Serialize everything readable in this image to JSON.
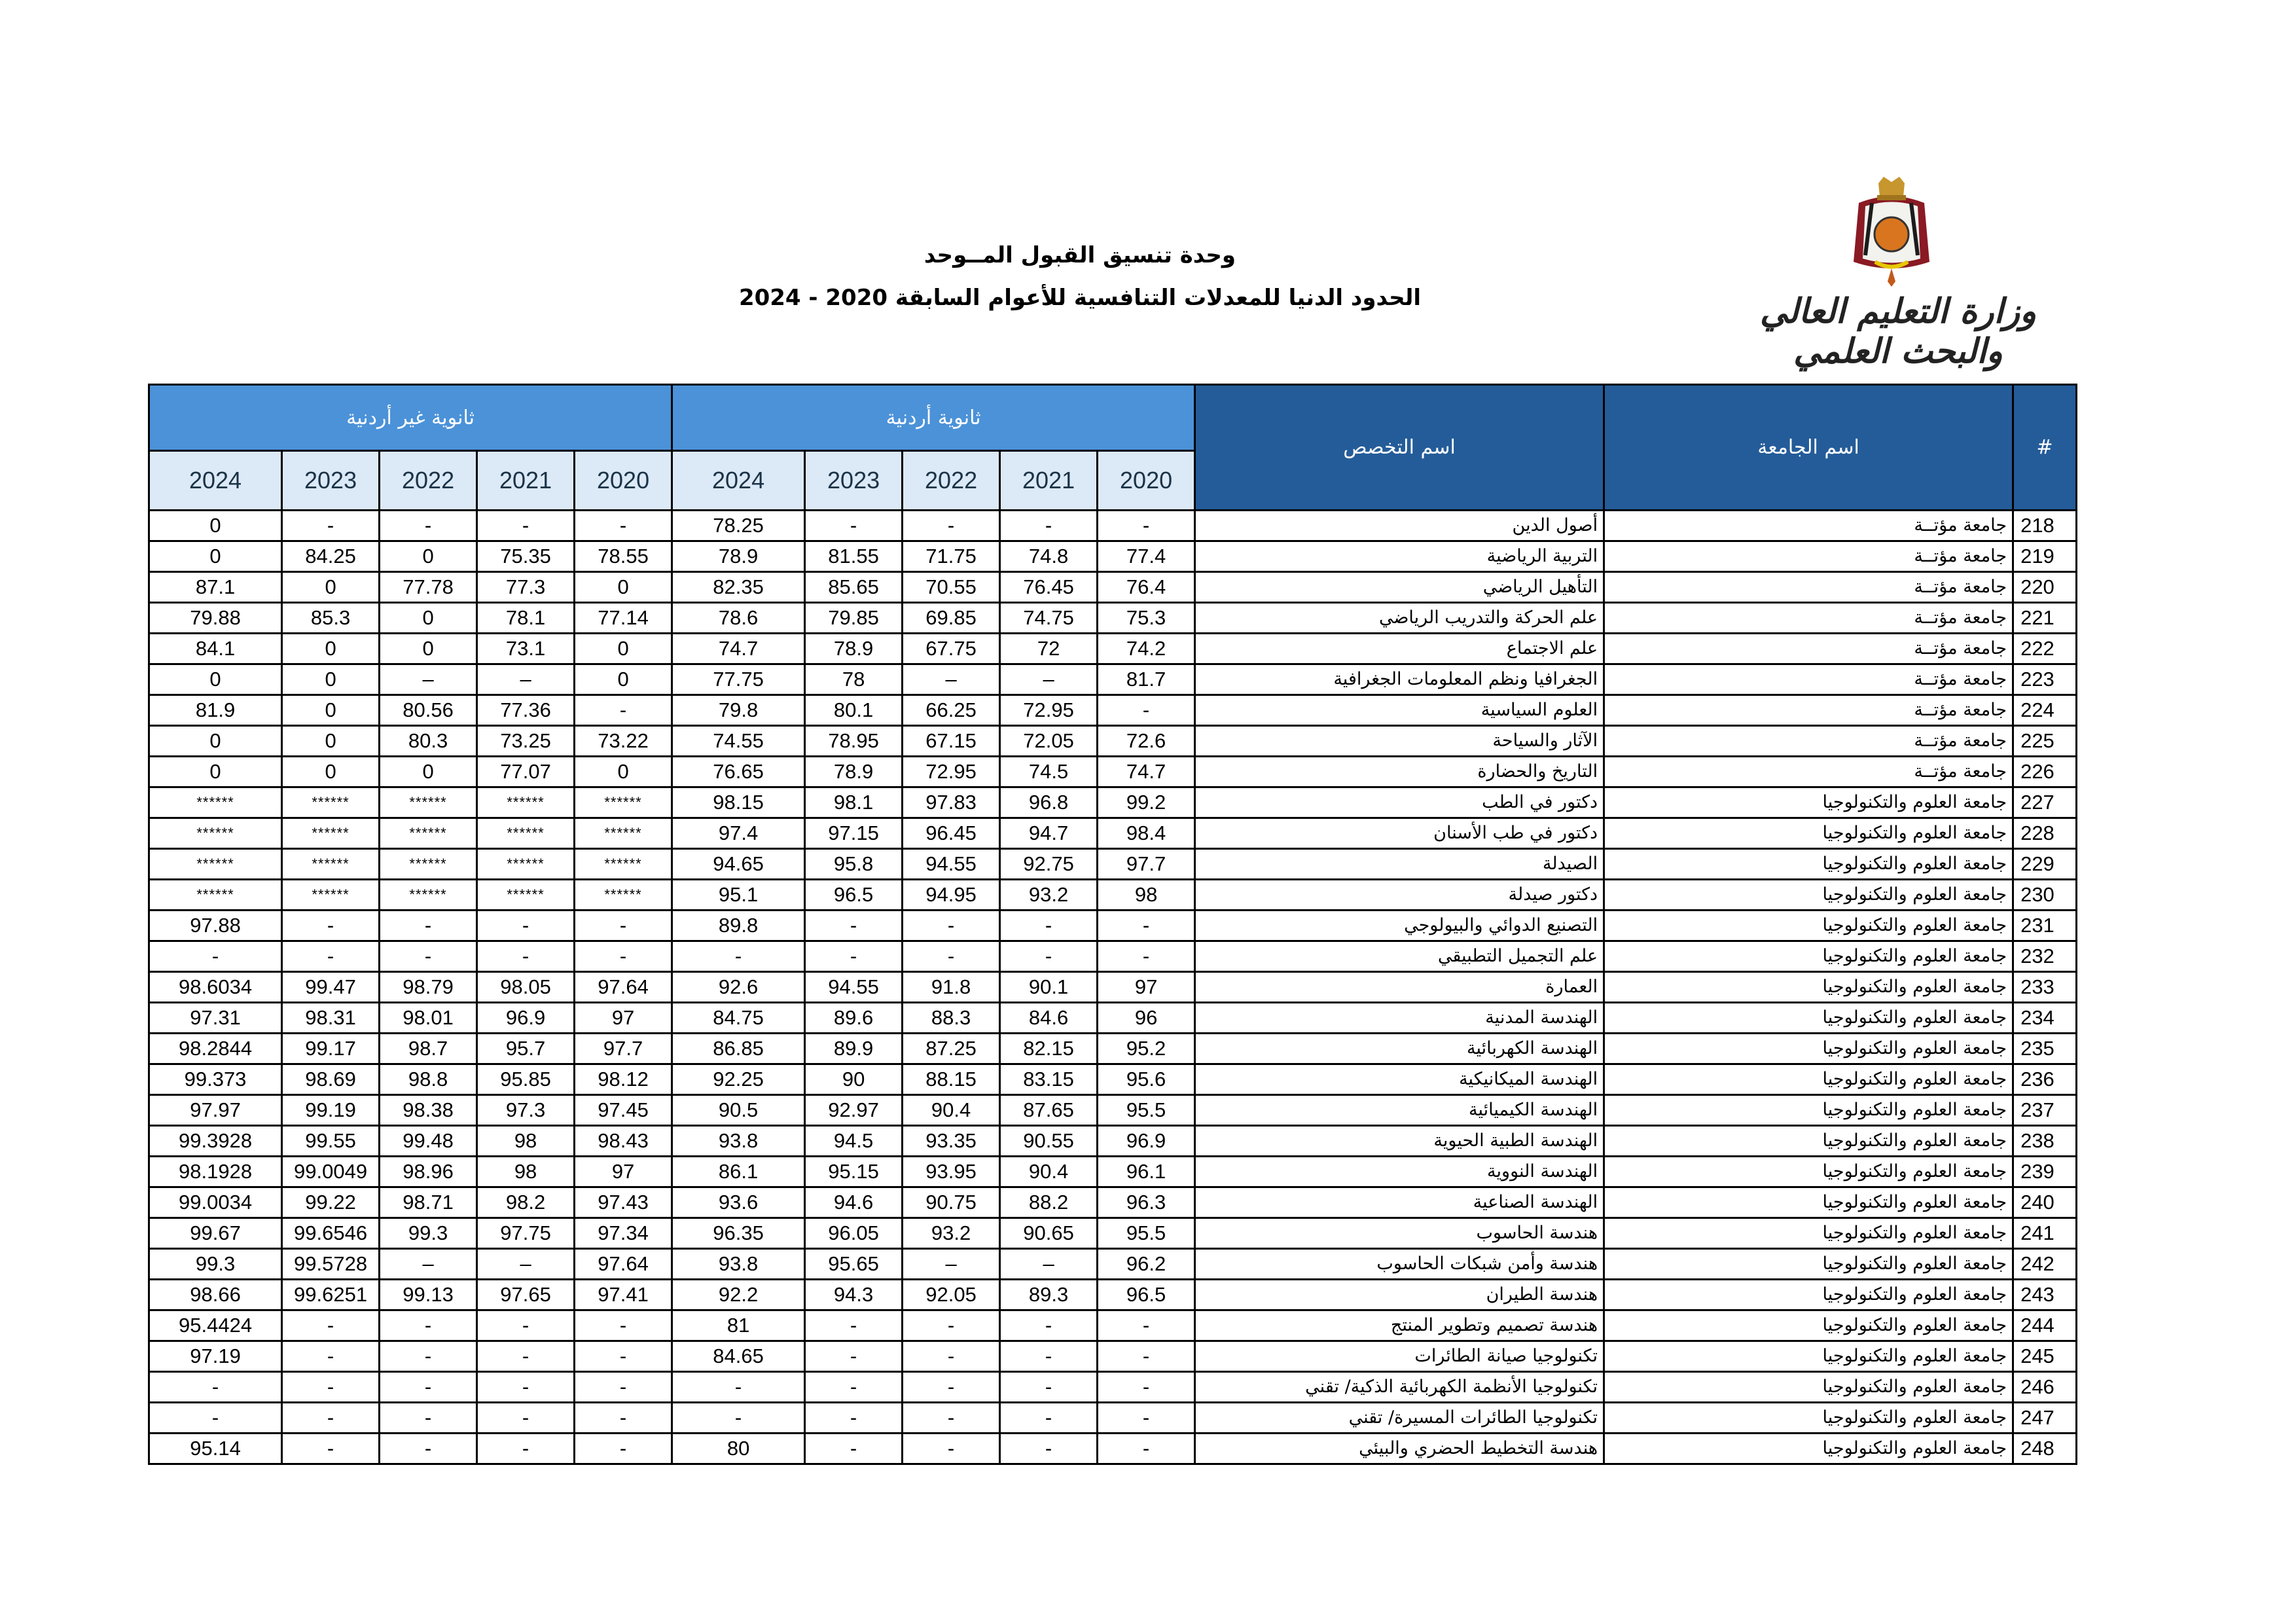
{
  "header": {
    "title": "وحدة تنسيق القبول المــوحد",
    "subtitle": "الحدود الدنيا للمعدلات التنافسية  للأعوام السابقة 2020 - 2024",
    "logo_text": "وزارة التعليم العالي والبحث العلمي"
  },
  "table": {
    "col_num": "#",
    "col_university": "اسم الجامعة",
    "col_major": "اسم التخصص",
    "group_jordanian": "ثانوية أردنية",
    "group_non_jordanian": "ثانوية غير أردنية",
    "years": [
      "2020",
      "2021",
      "2022",
      "2023",
      "2024"
    ],
    "rows": [
      {
        "n": "218",
        "u": "جامعة مؤتــة",
        "m": "أصول الدين",
        "jo": [
          "-",
          "-",
          "-",
          "-",
          "78.25"
        ],
        "nj": [
          "-",
          "-",
          "-",
          "-",
          "0"
        ]
      },
      {
        "n": "219",
        "u": "جامعة مؤتــة",
        "m": "التربية الرياضية",
        "jo": [
          "77.4",
          "74.8",
          "71.75",
          "81.55",
          "78.9"
        ],
        "nj": [
          "78.55",
          "75.35",
          "0",
          "84.25",
          "0"
        ]
      },
      {
        "n": "220",
        "u": "جامعة مؤتــة",
        "m": "التأهيل الرياضي",
        "jo": [
          "76.4",
          "76.45",
          "70.55",
          "85.65",
          "82.35"
        ],
        "nj": [
          "0",
          "77.3",
          "77.78",
          "0",
          "87.1"
        ]
      },
      {
        "n": "221",
        "u": "جامعة مؤتــة",
        "m": "علم الحركة والتدريب الرياضي",
        "jo": [
          "75.3",
          "74.75",
          "69.85",
          "79.85",
          "78.6"
        ],
        "nj": [
          "77.14",
          "78.1",
          "0",
          "85.3",
          "79.88"
        ]
      },
      {
        "n": "222",
        "u": "جامعة مؤتــة",
        "m": "علم الاجتماع",
        "jo": [
          "74.2",
          "72",
          "67.75",
          "78.9",
          "74.7"
        ],
        "nj": [
          "0",
          "73.1",
          "0",
          "0",
          "84.1"
        ]
      },
      {
        "n": "223",
        "u": "جامعة مؤتــة",
        "m": "الجغرافيا ونظم المعلومات الجغرافية",
        "jo": [
          "81.7",
          "–",
          "–",
          "78",
          "77.75"
        ],
        "nj": [
          "0",
          "–",
          "–",
          "0",
          "0"
        ]
      },
      {
        "n": "224",
        "u": "جامعة مؤتــة",
        "m": "العلوم السياسية",
        "jo": [
          "-",
          "72.95",
          "66.25",
          "80.1",
          "79.8"
        ],
        "nj": [
          "-",
          "77.36",
          "80.56",
          "0",
          "81.9"
        ]
      },
      {
        "n": "225",
        "u": "جامعة مؤتــة",
        "m": "الآثار والسياحة",
        "jo": [
          "72.6",
          "72.05",
          "67.15",
          "78.95",
          "74.55"
        ],
        "nj": [
          "73.22",
          "73.25",
          "80.3",
          "0",
          "0"
        ]
      },
      {
        "n": "226",
        "u": "جامعة مؤتــة",
        "m": "التاريخ والحضارة",
        "jo": [
          "74.7",
          "74.5",
          "72.95",
          "78.9",
          "76.65"
        ],
        "nj": [
          "0",
          "77.07",
          "0",
          "0",
          "0"
        ]
      },
      {
        "n": "227",
        "u": "جامعة العلوم والتكنولوجيا",
        "m": "دكتور في الطب",
        "jo": [
          "99.2",
          "96.8",
          "97.83",
          "98.1",
          "98.15"
        ],
        "nj": [
          "******",
          "******",
          "******",
          "******",
          "******"
        ]
      },
      {
        "n": "228",
        "u": "جامعة العلوم والتكنولوجيا",
        "m": "دكتور في طب الأسنان",
        "jo": [
          "98.4",
          "94.7",
          "96.45",
          "97.15",
          "97.4"
        ],
        "nj": [
          "******",
          "******",
          "******",
          "******",
          "******"
        ]
      },
      {
        "n": "229",
        "u": "جامعة العلوم والتكنولوجيا",
        "m": "الصيدلة",
        "jo": [
          "97.7",
          "92.75",
          "94.55",
          "95.8",
          "94.65"
        ],
        "nj": [
          "******",
          "******",
          "******",
          "******",
          "******"
        ]
      },
      {
        "n": "230",
        "u": "جامعة العلوم والتكنولوجيا",
        "m": "دكتور صيدلة",
        "jo": [
          "98",
          "93.2",
          "94.95",
          "96.5",
          "95.1"
        ],
        "nj": [
          "******",
          "******",
          "******",
          "******",
          "******"
        ]
      },
      {
        "n": "231",
        "u": "جامعة العلوم والتكنولوجيا",
        "m": "التصنيع الدوائي والبيولوجي",
        "jo": [
          "-",
          "-",
          "-",
          "-",
          "89.8"
        ],
        "nj": [
          "-",
          "-",
          "-",
          "-",
          "97.88"
        ]
      },
      {
        "n": "232",
        "u": "جامعة العلوم والتكنولوجيا",
        "m": "علم التجميل التطبيقي",
        "jo": [
          "-",
          "-",
          "-",
          "-",
          "-"
        ],
        "nj": [
          "-",
          "-",
          "-",
          "-",
          "-"
        ]
      },
      {
        "n": "233",
        "u": "جامعة العلوم والتكنولوجيا",
        "m": "العمارة",
        "jo": [
          "97",
          "90.1",
          "91.8",
          "94.55",
          "92.6"
        ],
        "nj": [
          "97.64",
          "98.05",
          "98.79",
          "99.47",
          "98.6034"
        ]
      },
      {
        "n": "234",
        "u": "جامعة العلوم والتكنولوجيا",
        "m": "الهندسة المدنية",
        "jo": [
          "96",
          "84.6",
          "88.3",
          "89.6",
          "84.75"
        ],
        "nj": [
          "97",
          "96.9",
          "98.01",
          "98.31",
          "97.31"
        ]
      },
      {
        "n": "235",
        "u": "جامعة العلوم والتكنولوجيا",
        "m": "الهندسة الكهربائية",
        "jo": [
          "95.2",
          "82.15",
          "87.25",
          "89.9",
          "86.85"
        ],
        "nj": [
          "97.7",
          "95.7",
          "98.7",
          "99.17",
          "98.2844"
        ]
      },
      {
        "n": "236",
        "u": "جامعة العلوم والتكنولوجيا",
        "m": "الهندسة الميكانيكية",
        "jo": [
          "95.6",
          "83.15",
          "88.15",
          "90",
          "92.25"
        ],
        "nj": [
          "98.12",
          "95.85",
          "98.8",
          "98.69",
          "99.373"
        ]
      },
      {
        "n": "237",
        "u": "جامعة العلوم والتكنولوجيا",
        "m": "الهندسة الكيميائية",
        "jo": [
          "95.5",
          "87.65",
          "90.4",
          "92.97",
          "90.5"
        ],
        "nj": [
          "97.45",
          "97.3",
          "98.38",
          "99.19",
          "97.97"
        ]
      },
      {
        "n": "238",
        "u": "جامعة العلوم والتكنولوجيا",
        "m": "الهندسة الطبية الحيوية",
        "jo": [
          "96.9",
          "90.55",
          "93.35",
          "94.5",
          "93.8"
        ],
        "nj": [
          "98.43",
          "98",
          "99.48",
          "99.55",
          "99.3928"
        ]
      },
      {
        "n": "239",
        "u": "جامعة العلوم والتكنولوجيا",
        "m": "الهندسة النووية",
        "jo": [
          "96.1",
          "90.4",
          "93.95",
          "95.15",
          "86.1"
        ],
        "nj": [
          "97",
          "98",
          "98.96",
          "99.0049",
          "98.1928"
        ]
      },
      {
        "n": "240",
        "u": "جامعة العلوم والتكنولوجيا",
        "m": "الهندسة الصناعية",
        "jo": [
          "96.3",
          "88.2",
          "90.75",
          "94.6",
          "93.6"
        ],
        "nj": [
          "97.43",
          "98.2",
          "98.71",
          "99.22",
          "99.0034"
        ]
      },
      {
        "n": "241",
        "u": "جامعة العلوم والتكنولوجيا",
        "m": "هندسة الحاسوب",
        "jo": [
          "95.5",
          "90.65",
          "93.2",
          "96.05",
          "96.35"
        ],
        "nj": [
          "97.34",
          "97.75",
          "99.3",
          "99.6546",
          "99.67"
        ]
      },
      {
        "n": "242",
        "u": "جامعة العلوم والتكنولوجيا",
        "m": "هندسة وأمن شبكات الحاسوب",
        "jo": [
          "96.2",
          "–",
          "–",
          "95.65",
          "93.8"
        ],
        "nj": [
          "97.64",
          "–",
          "–",
          "99.5728",
          "99.3"
        ]
      },
      {
        "n": "243",
        "u": "جامعة العلوم والتكنولوجيا",
        "m": "هندسة الطيران",
        "jo": [
          "96.5",
          "89.3",
          "92.05",
          "94.3",
          "92.2"
        ],
        "nj": [
          "97.41",
          "97.65",
          "99.13",
          "99.6251",
          "98.66"
        ]
      },
      {
        "n": "244",
        "u": "جامعة العلوم والتكنولوجيا",
        "m": "هندسة تصميم وتطوير المنتج",
        "jo": [
          "-",
          "-",
          "-",
          "-",
          "81"
        ],
        "nj": [
          "-",
          "-",
          "-",
          "-",
          "95.4424"
        ]
      },
      {
        "n": "245",
        "u": "جامعة العلوم والتكنولوجيا",
        "m": "تكنولوجيا صيانة الطائرات",
        "jo": [
          "-",
          "-",
          "-",
          "-",
          "84.65"
        ],
        "nj": [
          "-",
          "-",
          "-",
          "-",
          "97.19"
        ]
      },
      {
        "n": "246",
        "u": "جامعة العلوم والتكنولوجيا",
        "m": "تكنولوجيا الأنظمة الكهربائية الذكية/ تقني",
        "jo": [
          "-",
          "-",
          "-",
          "-",
          "-"
        ],
        "nj": [
          "-",
          "-",
          "-",
          "-",
          "-"
        ]
      },
      {
        "n": "247",
        "u": "جامعة العلوم والتكنولوجيا",
        "m": "تكنولوجيا الطائرات المسيرة/ تقني",
        "jo": [
          "-",
          "-",
          "-",
          "-",
          "-"
        ],
        "nj": [
          "-",
          "-",
          "-",
          "-",
          "-"
        ]
      },
      {
        "n": "248",
        "u": "جامعة العلوم والتكنولوجيا",
        "m": "هندسة التخطيط الحضري والبيئي",
        "jo": [
          "-",
          "-",
          "-",
          "-",
          "80"
        ],
        "nj": [
          "-",
          "-",
          "-",
          "-",
          "95.14"
        ]
      }
    ]
  },
  "colors": {
    "header_dark": "#245c99",
    "header_group": "#4b92d8",
    "header_year": "#dce9f7"
  }
}
